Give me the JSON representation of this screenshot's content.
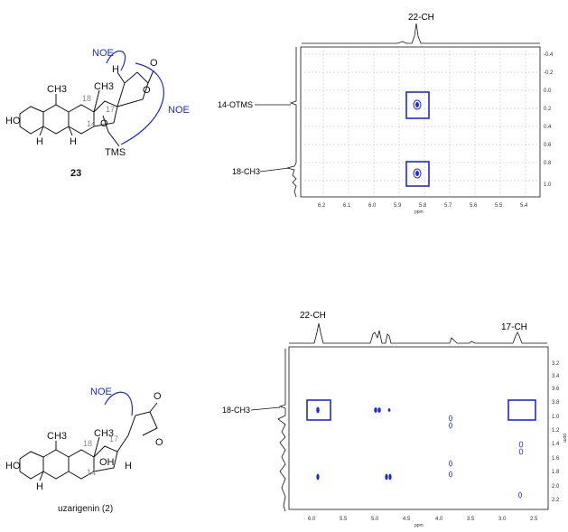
{
  "top_panel": {
    "structure": {
      "compound_label": "23",
      "noe_left": "NOE",
      "noe_right": "NOE",
      "atoms": {
        "h": "H",
        "ch3_a": "CH3",
        "ch3_b": "CH3",
        "n18": "18",
        "n17": "17",
        "n14": "14",
        "o_ring": "O",
        "o_carbonyl": "O",
        "o_lactone": "O",
        "ho": "HO",
        "h_a": "H",
        "h_b": "H",
        "tms": "TMS"
      }
    },
    "spectrum": {
      "top_label": "22-CH",
      "left_labels": [
        "14-OTMS",
        "18-CH3"
      ],
      "x_ticks": [
        "6.2",
        "6.1",
        "6.0",
        "5.9",
        "5.8",
        "5.7",
        "5.6",
        "5.5",
        "5.4"
      ],
      "x_unit": "ppm",
      "y_ticks": [
        "-0.4",
        "-0.2",
        "0.0",
        "0.2",
        "0.4",
        "0.6",
        "0.8",
        "1.0"
      ]
    }
  },
  "bottom_panel": {
    "structure": {
      "compound_name": "uzarigenin (2)",
      "noe": "NOE",
      "atoms": {
        "ch3_a": "CH3",
        "ch3_b": "CH3",
        "n18": "18",
        "n17": "17",
        "n14": "14",
        "oh": "OH",
        "h_side": "H",
        "o_carbonyl": "O",
        "o_lactone": "O",
        "ho": "HO",
        "h_a": "H"
      }
    },
    "spectrum": {
      "top_labels": [
        "22-CH",
        "17-CH"
      ],
      "left_label": "18-CH3",
      "x_ticks": [
        "6.0",
        "5.5",
        "5.0",
        "4.5",
        "4.0",
        "3.5",
        "3.0",
        "2.5"
      ],
      "x_unit": "ppm",
      "y_unit": "ppm",
      "y_ticks": [
        "3.2",
        "3.4",
        "3.6",
        "3.8",
        "1.0",
        "1.2",
        "1.4",
        "1.6",
        "1.8",
        "2.0",
        "2.2"
      ]
    }
  },
  "colors": {
    "accent": "#1a2be0",
    "text": "#111111",
    "numbering": "#888888"
  }
}
